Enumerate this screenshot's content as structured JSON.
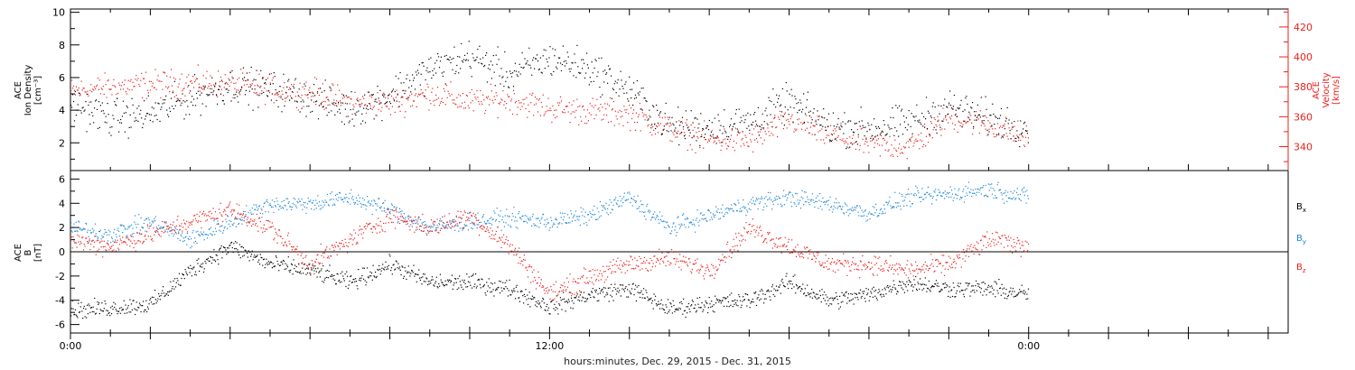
{
  "colors": {
    "black": "#000000",
    "red": "#e8201c",
    "blue": "#1f86d6"
  },
  "xlabel": "hours:minutes, Dec. 29, 2015 - Dec. 31, 2015",
  "chart_data": [
    {
      "type": "scatter",
      "panel": "top",
      "title": "",
      "xlabel": "hours:minutes, Dec. 29, 2015 - Dec. 31, 2015",
      "xlim_hours": [
        0,
        30.5
      ],
      "x_tick_labels": [
        {
          "hour": 0,
          "label": "0:00"
        },
        {
          "hour": 12,
          "label": "12:00"
        },
        {
          "hour": 24,
          "label": "0:00"
        }
      ],
      "y_left": {
        "label_lines": [
          "ACE",
          "Ion Density",
          "[cm⁻³]"
        ],
        "ylim": [
          0.3,
          10.2
        ],
        "ticks": [
          2,
          4,
          6,
          8,
          10
        ],
        "color": "#000000"
      },
      "y_right": {
        "label_lines": [
          "ACE",
          "Velocity",
          "[km/s]"
        ],
        "ylim": [
          324,
          432
        ],
        "ticks": [
          340,
          360,
          380,
          400,
          420
        ],
        "color": "#e8201c"
      },
      "series": [
        {
          "axis": "left",
          "color": "#000000",
          "x": [
            0,
            1,
            2,
            3,
            4,
            5,
            6,
            7,
            8,
            9,
            10,
            11,
            12,
            13,
            14,
            15,
            16,
            17,
            18,
            19,
            20,
            21,
            22,
            23,
            24
          ],
          "y": [
            4.5,
            3.5,
            3.8,
            4.8,
            5.6,
            5.3,
            4.8,
            4.0,
            5.0,
            6.5,
            7.3,
            6.2,
            7.2,
            6.6,
            5.2,
            3.0,
            3.0,
            3.3,
            4.5,
            3.0,
            2.9,
            3.2,
            4.2,
            3.5,
            3.0
          ]
        },
        {
          "axis": "right",
          "color": "#e8201c",
          "x": [
            0,
            1,
            2,
            3,
            4,
            5,
            6,
            7,
            8,
            9,
            10,
            11,
            12,
            13,
            14,
            15,
            16,
            17,
            18,
            19,
            20,
            21,
            22,
            23,
            24
          ],
          "y": [
            377,
            380,
            382,
            383,
            382,
            379,
            377,
            370,
            369,
            376,
            370,
            372,
            366,
            364,
            362,
            352,
            345,
            344,
            358,
            348,
            342,
            340,
            360,
            355,
            345
          ]
        }
      ]
    },
    {
      "type": "scatter",
      "panel": "bottom",
      "title": "",
      "xlim_hours": [
        0,
        30.5
      ],
      "y_left": {
        "label_lines": [
          "ACE",
          "B",
          "[nT]"
        ],
        "ylim": [
          -6.7,
          6.7
        ],
        "ticks": [
          -6,
          -4,
          -2,
          0,
          2,
          4,
          6
        ],
        "color": "#000000"
      },
      "series": [
        {
          "name": "Bx",
          "legend_main": "B",
          "legend_sub": "x",
          "color": "#000000",
          "x": [
            0,
            1,
            2,
            3,
            4,
            5,
            6,
            7,
            8,
            9,
            10,
            11,
            12,
            13,
            14,
            15,
            16,
            17,
            18,
            19,
            20,
            21,
            22,
            23,
            24
          ],
          "y": [
            -4.8,
            -4.6,
            -4.3,
            -1.5,
            0.5,
            -1.0,
            -1.5,
            -2.5,
            -1.0,
            -2.5,
            -2.5,
            -3.0,
            -4.5,
            -3.5,
            -3.0,
            -4.7,
            -4.2,
            -4.0,
            -2.5,
            -4.0,
            -3.5,
            -2.5,
            -3.0,
            -3.0,
            -3.5
          ]
        },
        {
          "name": "By",
          "legend_main": "B",
          "legend_sub": "y",
          "color": "#1f86d6",
          "x": [
            0,
            1,
            2,
            3,
            4,
            5,
            6,
            7,
            8,
            9,
            10,
            11,
            12,
            13,
            14,
            15,
            16,
            17,
            18,
            19,
            20,
            21,
            22,
            23,
            24
          ],
          "y": [
            2.0,
            1.5,
            2.5,
            1.0,
            2.5,
            4.0,
            4.0,
            4.5,
            3.5,
            2.0,
            2.5,
            2.8,
            2.5,
            3.0,
            4.5,
            2.0,
            3.0,
            4.0,
            4.5,
            4.0,
            3.2,
            4.5,
            4.8,
            5.2,
            4.5
          ]
        },
        {
          "name": "Bz",
          "legend_main": "B",
          "legend_sub": "z",
          "color": "#e8201c",
          "x": [
            0,
            1,
            2,
            3,
            4,
            5,
            6,
            7,
            8,
            9,
            10,
            11,
            12,
            13,
            14,
            15,
            16,
            17,
            18,
            19,
            20,
            21,
            22,
            23,
            24
          ],
          "y": [
            1.0,
            0.5,
            1.5,
            2.5,
            3.5,
            2.0,
            -1.0,
            1.0,
            3.0,
            2.0,
            3.0,
            0.5,
            -3.5,
            -2.0,
            -1.0,
            -0.5,
            -1.5,
            2.0,
            0.5,
            -1.0,
            -1.0,
            -1.5,
            -1.0,
            1.0,
            0.5
          ]
        }
      ]
    }
  ]
}
